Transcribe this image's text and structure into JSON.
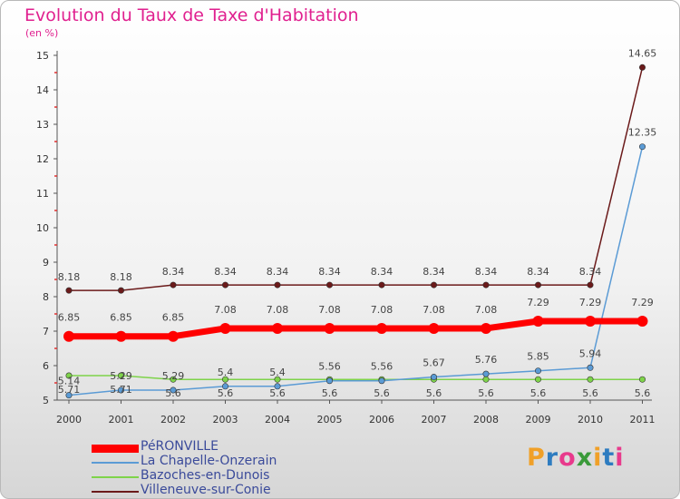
{
  "header": {
    "title": "Evolution du Taux de Taxe d'Habitation",
    "unit": "(en %)"
  },
  "logo": {
    "letters": [
      "P",
      "r",
      "o",
      "x",
      "i",
      "t",
      "i"
    ],
    "colors": [
      "#f0a028",
      "#2e7cc0",
      "#e83a8c",
      "#3a9a3a",
      "#f0a028",
      "#2e7cc0",
      "#e83a8c"
    ]
  },
  "chart_data": {
    "type": "line",
    "x": [
      "2000",
      "2001",
      "2002",
      "2003",
      "2004",
      "2005",
      "2006",
      "2007",
      "2008",
      "2009",
      "2010",
      "2011"
    ],
    "yticks": [
      "5",
      "6",
      "7",
      "8",
      "9",
      "10",
      "11",
      "12",
      "13",
      "14",
      "15"
    ],
    "ylim": [
      5,
      15
    ],
    "grid": false,
    "legend_position": "bottom-left",
    "series": [
      {
        "name": "PéRONVILLE",
        "color": "#ff0000",
        "values": [
          6.85,
          6.85,
          6.85,
          7.08,
          7.08,
          7.08,
          7.08,
          7.08,
          7.08,
          7.29,
          7.29,
          7.29
        ],
        "labels": [
          "6.85",
          "6.85",
          "6.85",
          "7.08",
          "7.08",
          "7.08",
          "7.08",
          "7.08",
          "7.08",
          "7.29",
          "7.29",
          "7.29"
        ]
      },
      {
        "name": "La Chapelle-Onzerain",
        "color": "#5b9bd5",
        "values": [
          5.14,
          5.29,
          5.29,
          5.4,
          5.4,
          5.56,
          5.56,
          5.67,
          5.76,
          5.85,
          5.94,
          12.35
        ],
        "labels": [
          "5.14",
          "5.29",
          "5.29",
          "5.4",
          "5.4",
          "5.56",
          "5.56",
          "5.67",
          "5.76",
          "5.85",
          "5.94",
          "12.35"
        ]
      },
      {
        "name": "Bazoches-en-Dunois",
        "color": "#7ed34a",
        "values": [
          5.71,
          5.71,
          5.6,
          5.6,
          5.6,
          5.6,
          5.6,
          5.6,
          5.6,
          5.6,
          5.6,
          5.6
        ],
        "labels": [
          "5.71",
          "5.71",
          "5.6",
          "5.6",
          "5.6",
          "5.6",
          "5.6",
          "5.6",
          "5.6",
          "5.6",
          "5.6",
          "5.6"
        ]
      },
      {
        "name": "Villeneuve-sur-Conie",
        "color": "#6b1a1a",
        "values": [
          8.18,
          8.18,
          8.34,
          8.34,
          8.34,
          8.34,
          8.34,
          8.34,
          8.34,
          8.34,
          8.34,
          14.65
        ],
        "labels": [
          "8.18",
          "8.18",
          "8.34",
          "8.34",
          "8.34",
          "8.34",
          "8.34",
          "8.34",
          "8.34",
          "8.34",
          "8.34",
          "14.65"
        ]
      }
    ]
  }
}
